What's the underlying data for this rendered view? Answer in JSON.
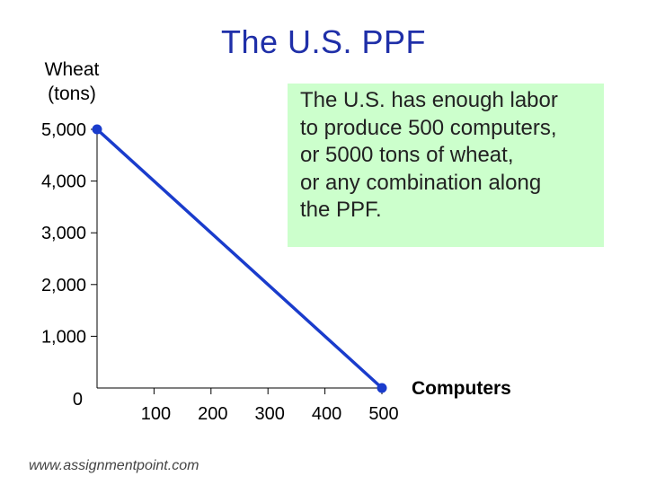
{
  "chart_data": {
    "type": "line",
    "title": "The U.S. PPF",
    "ylabel_lines": [
      "Wheat",
      "(tons)"
    ],
    "xlabel": "Computers",
    "y_ticks": [
      {
        "value": 0,
        "label": "0"
      },
      {
        "value": 1000,
        "label": "1,000"
      },
      {
        "value": 2000,
        "label": "2,000"
      },
      {
        "value": 3000,
        "label": "3,000"
      },
      {
        "value": 4000,
        "label": "4,000"
      },
      {
        "value": 5000,
        "label": "5,000"
      }
    ],
    "x_ticks": [
      {
        "value": 100,
        "label": "100"
      },
      {
        "value": 200,
        "label": "200"
      },
      {
        "value": 300,
        "label": "300"
      },
      {
        "value": 400,
        "label": "400"
      },
      {
        "value": 500,
        "label": "500"
      }
    ],
    "xlim": [
      0,
      500
    ],
    "ylim": [
      0,
      5000
    ],
    "series": [
      {
        "name": "PPF",
        "x": [
          0,
          500
        ],
        "y": [
          5000,
          0
        ],
        "color": "#1a3ccc"
      }
    ],
    "annotation_lines": [
      "The U.S. has enough labor",
      "to produce 500 computers,",
      "or 5000 tons of wheat,",
      "or any combination along",
      "the PPF."
    ]
  },
  "footer": "www.assignmentpoint.com"
}
